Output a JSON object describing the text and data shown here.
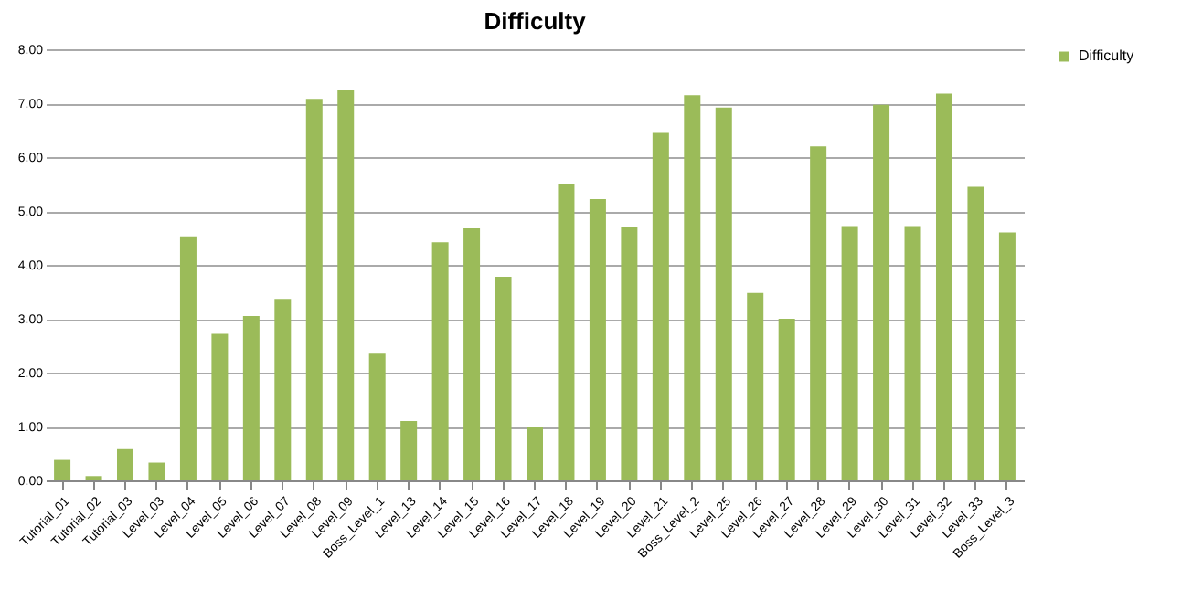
{
  "chart_data": {
    "type": "bar",
    "title": "Difficulty",
    "categories": [
      "Tutorial_01",
      "Tutorial_02",
      "Tutorial_03",
      "Level_03",
      "Level_04",
      "Level_05",
      "Level_06",
      "Level_07",
      "Level_08",
      "Level_09",
      "Boss_Level_1",
      "Level_13",
      "Level_14",
      "Level_15",
      "Level_16",
      "Level_17",
      "Level_18",
      "Level_19",
      "Level_20",
      "Level_21",
      "Boss_Level_2",
      "Level_25",
      "Level_26",
      "Level_27",
      "Level_28",
      "Level_29",
      "Level_30",
      "Level_31",
      "Level_32",
      "Level_33",
      "Boss_Level_3"
    ],
    "series": [
      {
        "name": "Difficulty",
        "color": "#9bbb59",
        "values": [
          0.38,
          0.08,
          0.58,
          0.33,
          4.53,
          2.72,
          3.05,
          3.37,
          7.08,
          7.25,
          2.35,
          1.1,
          4.42,
          4.68,
          3.78,
          1.0,
          5.5,
          5.22,
          4.7,
          6.45,
          7.15,
          6.92,
          3.48,
          3.0,
          6.2,
          4.72,
          6.97,
          4.72,
          7.18,
          5.45,
          4.6
        ]
      }
    ],
    "ylim": [
      0,
      8
    ],
    "yticks": [
      {
        "value": 0,
        "label": "0.00"
      },
      {
        "value": 1,
        "label": "1.00"
      },
      {
        "value": 2,
        "label": "2.00"
      },
      {
        "value": 3,
        "label": "3.00"
      },
      {
        "value": 4,
        "label": "4.00"
      },
      {
        "value": 5,
        "label": "5.00"
      },
      {
        "value": 6,
        "label": "6.00"
      },
      {
        "value": 7,
        "label": "7.00"
      },
      {
        "value": 8,
        "label": "8.00"
      }
    ],
    "grid": "y",
    "legend": "right"
  }
}
